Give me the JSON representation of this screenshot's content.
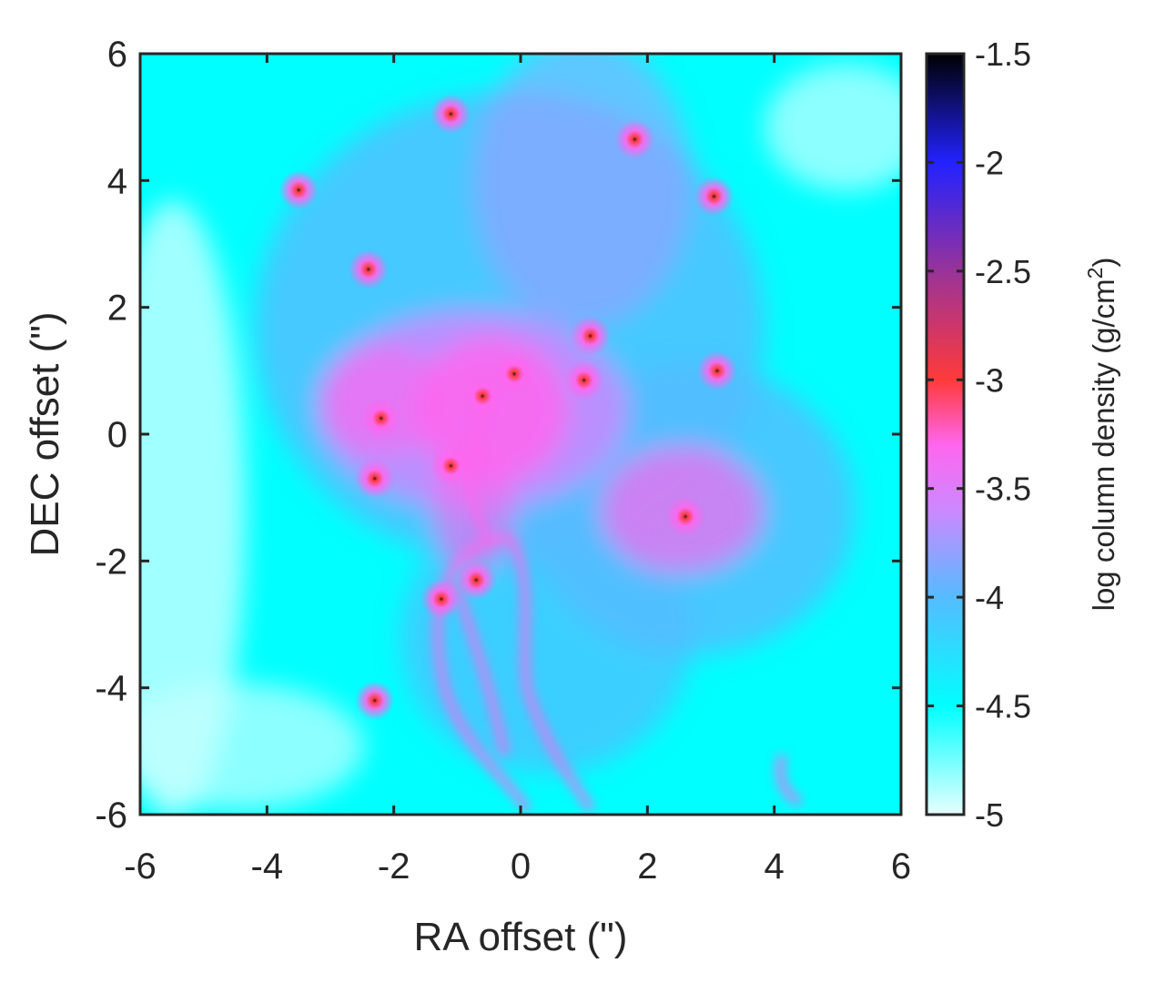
{
  "chart_data": {
    "type": "heatmap",
    "xlabel": "RA offset (\")",
    "ylabel": "DEC offset (\")",
    "xlim": [
      -6,
      6
    ],
    "ylim": [
      -6,
      6
    ],
    "x_ticks": [
      "-6",
      "-4",
      "-2",
      "0",
      "2",
      "4",
      "6"
    ],
    "y_ticks": [
      "-6",
      "-4",
      "-2",
      "0",
      "2",
      "4",
      "6"
    ],
    "x_tick_values": [
      -6,
      -4,
      -2,
      0,
      2,
      4,
      6
    ],
    "y_tick_values": [
      -6,
      -4,
      -2,
      0,
      2,
      4,
      6
    ],
    "colorbar": {
      "label_prefix": "log column density (g/cm",
      "label_sup": "2",
      "label_suffix": ")",
      "range": [
        -5,
        -1.5
      ],
      "ticks": [
        "-1.5",
        "-2",
        "-2.5",
        "-3",
        "-3.5",
        "-4",
        "-4.5",
        "-5"
      ],
      "tick_values": [
        -1.5,
        -2,
        -2.5,
        -3,
        -3.5,
        -4,
        -4.5,
        -5
      ],
      "colormap": [
        {
          "value": -5.0,
          "color": "#e8ffff"
        },
        {
          "value": -4.5,
          "color": "#00ffff"
        },
        {
          "value": -4.0,
          "color": "#55bbff"
        },
        {
          "value": -3.6,
          "color": "#cc88ff"
        },
        {
          "value": -3.3,
          "color": "#ff66ee"
        },
        {
          "value": -3.0,
          "color": "#ff3a3a"
        },
        {
          "value": -2.5,
          "color": "#993399"
        },
        {
          "value": -2.0,
          "color": "#2222ff"
        },
        {
          "value": -1.5,
          "color": "#000000"
        }
      ]
    },
    "sources": [
      {
        "x": -3.5,
        "y": 3.85
      },
      {
        "x": -1.1,
        "y": 5.05
      },
      {
        "x": 1.8,
        "y": 4.65
      },
      {
        "x": 3.05,
        "y": 3.75
      },
      {
        "x": -2.4,
        "y": 2.6
      },
      {
        "x": 1.1,
        "y": 1.55
      },
      {
        "x": 3.1,
        "y": 1.0
      },
      {
        "x": -2.2,
        "y": 0.25
      },
      {
        "x": -0.6,
        "y": 0.6
      },
      {
        "x": -0.1,
        "y": 0.95
      },
      {
        "x": 1.0,
        "y": 0.85
      },
      {
        "x": -2.3,
        "y": -0.7
      },
      {
        "x": -1.1,
        "y": -0.5
      },
      {
        "x": 2.6,
        "y": -1.3
      },
      {
        "x": -0.7,
        "y": -2.3
      },
      {
        "x": -1.25,
        "y": -2.6
      },
      {
        "x": -2.3,
        "y": -4.2
      }
    ]
  }
}
